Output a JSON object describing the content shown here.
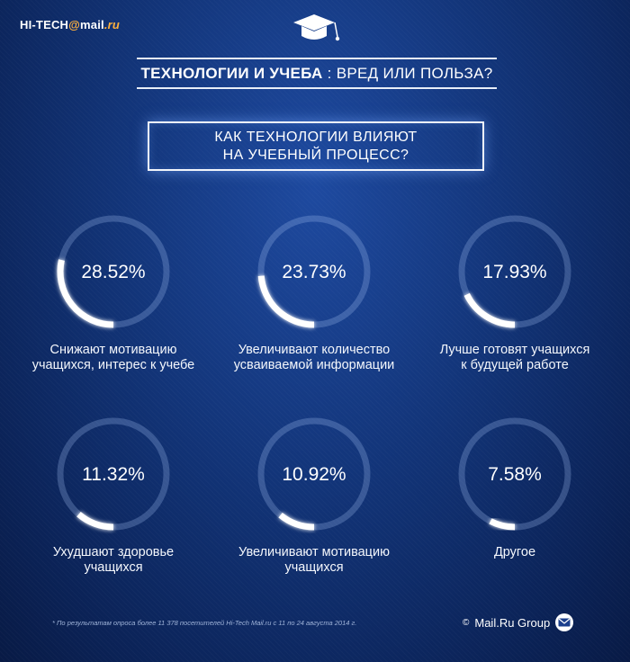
{
  "header": {
    "logo_prefix": "HI-TECH",
    "logo_at": "@",
    "logo_mail": "mail",
    "logo_ru": ".ru",
    "headline_strong": "ТЕХНОЛОГИИ И УЧЕБА",
    "headline_rest": " : ВРЕД ИЛИ ПОЛЬЗА?",
    "question_line1": "КАК ТЕХНОЛОГИИ ВЛИЯЮТ",
    "question_line2": "НА УЧЕБНЫЙ ПРОЦЕСС?"
  },
  "chart_data": {
    "type": "pie",
    "items": [
      {
        "value": 28.52,
        "display": "28.52%",
        "label_line1": "Снижают мотивацию",
        "label_line2": "учащихся, интерес к учебе"
      },
      {
        "value": 23.73,
        "display": "23.73%",
        "label_line1": "Увеличивают количество",
        "label_line2": "усваиваемой информации"
      },
      {
        "value": 17.93,
        "display": "17.93%",
        "label_line1": "Лучше готовят учащихся",
        "label_line2": "к будущей работе"
      },
      {
        "value": 11.32,
        "display": "11.32%",
        "label_line1": "Ухудшают здоровье",
        "label_line2": "учащихся"
      },
      {
        "value": 10.92,
        "display": "10.92%",
        "label_line1": "Увеличивают мотивацию",
        "label_line2": "учащихся"
      },
      {
        "value": 7.58,
        "display": "7.58%",
        "label_line1": "Другое",
        "label_line2": ""
      }
    ]
  },
  "footer": {
    "footnote": "* По результатам опроса более 11 378  посетителей Hi-Tech Mail.ru с 11 по 24 августа 2014 г.",
    "copyright": "©",
    "brand": "Mail.Ru Group",
    "brand_icon": "envelope-icon"
  },
  "colors": {
    "background": "#123478",
    "ring_track": "rgba(160,190,240,0.28)",
    "ring_fill": "#ffffff",
    "logo_accent": "#ffb13d"
  }
}
